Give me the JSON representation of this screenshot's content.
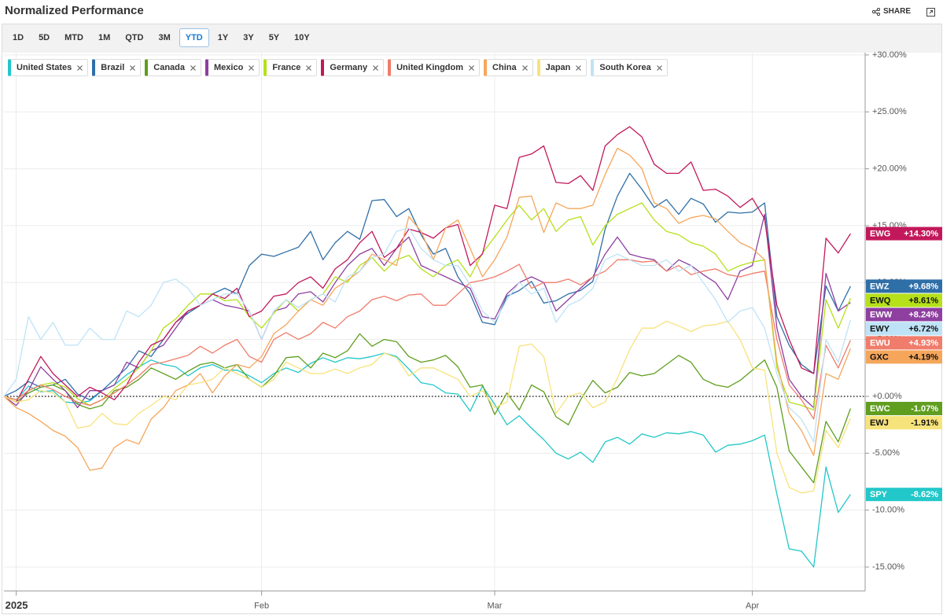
{
  "header": {
    "title": "Normalized Performance",
    "share": "SHARE"
  },
  "ranges": [
    "1D",
    "5D",
    "MTD",
    "1M",
    "QTD",
    "3M",
    "YTD",
    "1Y",
    "3Y",
    "5Y",
    "10Y"
  ],
  "selected_range": "YTD",
  "chart_data": {
    "type": "line",
    "categories": [
      null,
      "2025",
      null,
      null,
      null,
      null,
      null,
      null,
      null,
      null,
      null,
      null,
      null,
      null,
      null,
      null,
      null,
      null,
      null,
      null,
      null,
      "Feb",
      null,
      null,
      null,
      null,
      null,
      null,
      null,
      null,
      null,
      null,
      null,
      null,
      null,
      null,
      null,
      null,
      null,
      null,
      "Mar",
      null,
      null,
      null,
      null,
      null,
      null,
      null,
      null,
      null,
      null,
      null,
      null,
      null,
      null,
      null,
      null,
      null,
      null,
      null,
      null,
      "Apr",
      null,
      null,
      null,
      null,
      null,
      null,
      null,
      null
    ],
    "ylim": [
      -17.1,
      30.2
    ],
    "yticks": [
      {
        "value": -15,
        "label": "-15.00%"
      },
      {
        "value": -10,
        "label": "-10.00%"
      },
      {
        "value": -5,
        "label": "-5.00%"
      },
      {
        "value": 0,
        "label": "+0.00%"
      },
      {
        "value": 5,
        "label": "+5.00%"
      },
      {
        "value": 10,
        "label": "+10.00%"
      },
      {
        "value": 15,
        "label": "+15.00%"
      },
      {
        "value": 20,
        "label": "+20.00%"
      },
      {
        "value": 25,
        "label": "+25.00%"
      },
      {
        "value": 30,
        "label": "+30.00%"
      }
    ],
    "grid": true,
    "baseline": 0,
    "series": [
      {
        "name": "United States",
        "ticker": "SPY",
        "badge": "-8.62%",
        "color": "#22c7c9",
        "values": [
          0,
          -0.3,
          0.9,
          0.4,
          0.5,
          -0.5,
          -0.6,
          -0.4,
          0.5,
          1.0,
          1.9,
          2.6,
          3.2,
          2.8,
          2.6,
          1.8,
          2.5,
          2.8,
          2.3,
          2.3,
          1.8,
          1.2,
          2.0,
          2.5,
          2.1,
          2.9,
          3.4,
          3.0,
          3.4,
          3.3,
          3.5,
          3.8,
          3.5,
          2.4,
          1.2,
          1.0,
          0.3,
          0.2,
          -1.3,
          0.9,
          -0.7,
          -2.5,
          -1.7,
          -2.8,
          -3.8,
          -5.0,
          -5.5,
          -4.9,
          -5.8,
          -4.0,
          -3.6,
          -4.2,
          -3.3,
          -3.6,
          -3.2,
          -3.3,
          -3.1,
          -3.4,
          -4.9,
          -4.3,
          -4.2,
          -3.9,
          -3.4,
          -8.6,
          -13.4,
          -13.6,
          -15.0,
          -6.2,
          -10.2,
          -8.62
        ]
      },
      {
        "name": "Brazil",
        "ticker": "EWZ",
        "badge": "+9.68%",
        "color": "#2f6fa8",
        "values": [
          0,
          0.5,
          1.3,
          0.8,
          1.0,
          1.5,
          0.2,
          -0.3,
          0.5,
          1.5,
          2.5,
          4.0,
          3.5,
          5.0,
          6.5,
          7.3,
          8.0,
          9.0,
          9.5,
          9.0,
          11.5,
          12.5,
          12.3,
          12.7,
          13.1,
          14.5,
          12.0,
          13.5,
          14.5,
          13.8,
          17.2,
          17.3,
          15.8,
          16.5,
          14.2,
          12.5,
          13.0,
          10.5,
          9.0,
          6.5,
          6.3,
          8.8,
          9.3,
          10.1,
          8.2,
          8.4,
          9.0,
          9.3,
          10.1,
          14.7,
          17.6,
          19.6,
          18.2,
          16.6,
          17.3,
          16.0,
          17.4,
          16.9,
          15.3,
          16.2,
          16.1,
          16.2,
          17.0,
          7.0,
          4.5,
          2.8,
          2.0,
          9.7,
          7.5,
          9.68
        ]
      },
      {
        "name": "Canada",
        "ticker": "EWC",
        "badge": "-1.07%",
        "color": "#5f9e1e",
        "values": [
          0,
          -0.5,
          0.3,
          0.8,
          1.0,
          0.5,
          -0.7,
          -1.1,
          -0.8,
          0.5,
          0.8,
          1.5,
          2.5,
          2.0,
          1.5,
          2.2,
          2.8,
          3.0,
          2.5,
          2.8,
          1.5,
          0.8,
          1.8,
          3.4,
          3.5,
          2.5,
          3.8,
          3.4,
          4.0,
          5.5,
          4.4,
          5.0,
          4.8,
          3.5,
          3.0,
          3.2,
          3.6,
          2.6,
          0.8,
          1.0,
          -1.6,
          0.3,
          -1.2,
          1.0,
          0.4,
          -1.8,
          -2.5,
          -0.3,
          1.4,
          0.3,
          0.8,
          2.1,
          1.8,
          2.0,
          2.8,
          3.6,
          3.0,
          1.5,
          1.0,
          0.8,
          1.4,
          2.3,
          3.2,
          0.8,
          -4.8,
          -6.2,
          -7.6,
          -2.2,
          -4.0,
          -1.07
        ]
      },
      {
        "name": "Mexico",
        "ticker": "EWW",
        "badge": "+8.24%",
        "color": "#8e3fa0",
        "values": [
          0,
          -0.8,
          0.5,
          2.6,
          1.5,
          0.5,
          -1.0,
          0.5,
          0.5,
          1.0,
          3.0,
          2.5,
          4.0,
          4.5,
          6.0,
          7.5,
          8.0,
          8.5,
          8.0,
          7.8,
          7.5,
          5.0,
          7.5,
          7.8,
          9.0,
          9.2,
          8.3,
          10.0,
          11.5,
          12.5,
          13.0,
          11.5,
          13.0,
          14.0,
          11.5,
          11.0,
          10.5,
          10.0,
          9.5,
          7.0,
          6.8,
          9.0,
          10.0,
          10.5,
          10.0,
          7.5,
          8.5,
          9.5,
          10.5,
          12.5,
          14.0,
          12.5,
          12.2,
          12.0,
          11.0,
          12.0,
          11.5,
          10.7,
          10.0,
          8.5,
          11.0,
          11.5,
          16.0,
          6.0,
          1.5,
          0.0,
          -1.0,
          10.8,
          7.5,
          8.24
        ]
      },
      {
        "name": "France",
        "ticker": "EWQ",
        "badge": "+8.61%",
        "color": "#b5e01a",
        "values": [
          0,
          -0.3,
          0.5,
          1.0,
          1.2,
          0.8,
          -0.2,
          -0.8,
          -0.3,
          0.7,
          1.5,
          2.5,
          4.0,
          6.0,
          6.8,
          8.0,
          9.0,
          9.0,
          8.4,
          8.5,
          7.0,
          6.0,
          7.3,
          8.5,
          7.5,
          8.5,
          9.0,
          10.5,
          10.0,
          11.5,
          12.2,
          11.0,
          12.0,
          12.4,
          11.2,
          10.5,
          11.5,
          12.0,
          10.5,
          12.6,
          14.0,
          15.5,
          16.8,
          15.5,
          16.5,
          14.5,
          15.5,
          15.8,
          13.3,
          15.0,
          16.0,
          16.5,
          17.0,
          15.5,
          14.5,
          14.2,
          13.5,
          13.2,
          12.5,
          11.0,
          11.5,
          11.8,
          12.0,
          2.5,
          -0.5,
          -0.8,
          -1.2,
          8.5,
          6.0,
          8.61
        ]
      },
      {
        "name": "Germany",
        "ticker": "EWG",
        "badge": "+14.30%",
        "color": "#c2185b",
        "values": [
          0,
          -0.5,
          1.5,
          3.5,
          2.0,
          1.0,
          0.0,
          0.8,
          0.3,
          -0.3,
          1.0,
          3.0,
          4.5,
          5.0,
          6.5,
          7.5,
          8.0,
          9.0,
          8.6,
          9.5,
          7.0,
          7.5,
          8.8,
          9.0,
          10.0,
          10.5,
          9.5,
          11.2,
          12.0,
          13.5,
          14.5,
          12.2,
          13.0,
          14.7,
          14.4,
          13.9,
          14.8,
          15.1,
          11.5,
          12.5,
          16.8,
          16.5,
          21.0,
          21.3,
          22.0,
          18.8,
          18.7,
          19.4,
          18.1,
          22.0,
          23.0,
          23.7,
          22.8,
          20.4,
          19.6,
          19.6,
          20.6,
          18.1,
          18.2,
          17.6,
          16.6,
          17.4,
          15.6,
          8.0,
          5.0,
          2.5,
          2.0,
          13.9,
          12.6,
          14.3
        ]
      },
      {
        "name": "United Kingdom",
        "ticker": "EWU",
        "badge": "+4.93%",
        "color": "#f07c6b",
        "values": [
          0,
          -0.3,
          0.5,
          1.0,
          0.6,
          0.0,
          -0.5,
          -0.8,
          -0.3,
          0.3,
          1.0,
          1.8,
          2.8,
          3.0,
          3.3,
          3.6,
          4.4,
          3.8,
          4.5,
          5.0,
          3.5,
          3.0,
          5.0,
          5.6,
          5.0,
          5.5,
          6.5,
          6.0,
          7.0,
          7.5,
          8.5,
          8.8,
          8.4,
          8.9,
          9.0,
          8.0,
          8.0,
          9.0,
          10.0,
          10.2,
          10.5,
          11.0,
          11.6,
          9.5,
          10.0,
          10.0,
          10.3,
          9.8,
          10.5,
          11.0,
          12.0,
          12.0,
          11.8,
          11.9,
          11.0,
          11.5,
          10.7,
          11.0,
          11.2,
          10.7,
          10.5,
          10.8,
          11.0,
          5.0,
          1.0,
          -0.3,
          -2.0,
          4.5,
          2.5,
          4.93
        ]
      },
      {
        "name": "China",
        "ticker": "GXC",
        "badge": "+4.19%",
        "color": "#f5a65b",
        "values": [
          0,
          -1.0,
          -1.5,
          -2.2,
          -3.0,
          -3.5,
          -4.5,
          -6.5,
          -6.3,
          -4.5,
          -3.8,
          -4.2,
          -2.0,
          -1.0,
          0.5,
          1.0,
          2.0,
          0.3,
          1.8,
          2.8,
          2.5,
          3.5,
          5.5,
          6.3,
          7.5,
          8.5,
          8.0,
          9.5,
          10.2,
          11.0,
          12.5,
          12.0,
          11.5,
          15.8,
          14.5,
          12.0,
          14.8,
          15.5,
          13.0,
          10.5,
          12.0,
          14.0,
          17.5,
          17.6,
          14.4,
          17.0,
          16.5,
          16.5,
          16.8,
          19.5,
          21.8,
          21.2,
          20.0,
          17.0,
          16.5,
          15.2,
          15.7,
          15.9,
          15.6,
          14.5,
          13.5,
          13.0,
          12.0,
          3.0,
          -1.5,
          -3.0,
          -5.2,
          2.0,
          1.5,
          4.19
        ]
      },
      {
        "name": "Japan",
        "ticker": "EWJ",
        "badge": "-1.91%",
        "color": "#f7e37c",
        "values": [
          0,
          -0.5,
          -0.3,
          0.5,
          0.3,
          -0.5,
          -2.8,
          -2.6,
          -1.5,
          -2.4,
          -2.5,
          -1.5,
          -0.8,
          0.0,
          -0.3,
          1.0,
          1.2,
          1.5,
          2.5,
          2.0,
          1.5,
          0.8,
          1.5,
          3.0,
          2.5,
          2.0,
          2.0,
          2.4,
          2.0,
          2.5,
          2.8,
          3.8,
          3.4,
          1.8,
          2.5,
          2.5,
          2.0,
          1.5,
          0.0,
          0.5,
          -1.0,
          -0.5,
          4.4,
          4.6,
          3.5,
          -1.5,
          0.0,
          0.3,
          -1.0,
          -0.5,
          1.6,
          4.1,
          6.0,
          6.0,
          6.6,
          6.2,
          5.7,
          6.2,
          6.3,
          6.6,
          5.0,
          2.5,
          2.3,
          -5.0,
          -8.0,
          -8.5,
          -8.3,
          -3.0,
          -4.5,
          -1.91
        ]
      },
      {
        "name": "South Korea",
        "ticker": "EWY",
        "badge": "+6.72%",
        "color": "#bfe3f6",
        "values": [
          0,
          1.5,
          7.0,
          5.0,
          6.5,
          4.5,
          4.5,
          6.0,
          5.0,
          5.0,
          7.5,
          7.0,
          8.0,
          10.0,
          10.3,
          9.5,
          8.0,
          8.5,
          9.0,
          9.0,
          7.5,
          5.0,
          7.5,
          8.5,
          7.8,
          8.5,
          9.0,
          8.3,
          10.5,
          11.0,
          12.2,
          12.5,
          14.5,
          14.8,
          13.0,
          12.0,
          11.5,
          11.5,
          9.8,
          7.5,
          6.5,
          8.5,
          10.0,
          9.0,
          9.5,
          6.5,
          8.0,
          8.5,
          9.5,
          12.0,
          12.5,
          12.0,
          11.5,
          11.5,
          12.0,
          11.0,
          11.5,
          10.0,
          8.5,
          6.5,
          7.5,
          7.8,
          6.0,
          2.0,
          -1.0,
          -2.0,
          -4.0,
          5.0,
          3.0,
          6.72
        ]
      }
    ]
  }
}
